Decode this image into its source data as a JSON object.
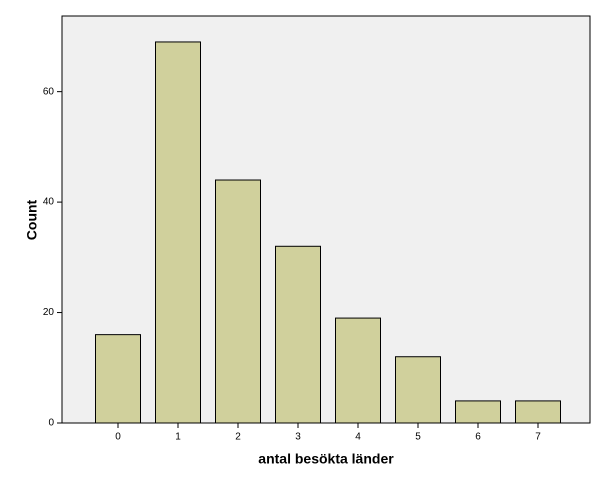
{
  "chart_data": {
    "type": "bar",
    "x_label": "antal besökta länder",
    "y_label": "Count",
    "categories": [
      "0",
      "1",
      "2",
      "3",
      "4",
      "5",
      "6",
      "7"
    ],
    "values": [
      16,
      69,
      44,
      32,
      19,
      12,
      4,
      4
    ],
    "color": "#d0d09c",
    "ylim": [
      0,
      73.7
    ],
    "yticks": [
      0,
      20,
      40,
      60
    ],
    "grid": false
  }
}
